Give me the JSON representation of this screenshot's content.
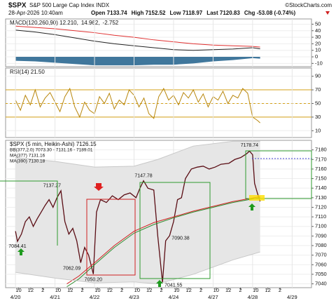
{
  "header": {
    "symbol": "$SPX",
    "name": "S&P 500 Large Cap Index INDX",
    "credit": "©StockCharts.com",
    "date": "28-Apr-2026 10:40am",
    "quote": [
      "Open 7133.74",
      "High 7152.52",
      "Low 7118.97",
      "Last 7120.83",
      "Chg -53.08 (-0.74%)"
    ]
  },
  "chart_data": [
    {
      "type": "line",
      "panel": "macd",
      "legend": [
        "MACD(120,260,90) 12.210,",
        "14.962,",
        "-2.752"
      ],
      "x": [
        0,
        0.5,
        1,
        1.5,
        2,
        2.5,
        3,
        3.5,
        4,
        4.5,
        5,
        5.5,
        6,
        6.19
      ],
      "series": [
        {
          "color": "#222222",
          "values": [
            41,
            38,
            34,
            29,
            24,
            20,
            17,
            14,
            11,
            10,
            11,
            12,
            14,
            12.21
          ]
        },
        {
          "color": "#e03030",
          "values": [
            47,
            45,
            43,
            40,
            37,
            33,
            30,
            26,
            23,
            20,
            18,
            17,
            16,
            14.962
          ]
        },
        {
          "color": "#1f5f8b",
          "histogram": true,
          "values": [
            -6,
            -7,
            -9,
            -11,
            -13,
            -13,
            -13,
            -12,
            -12,
            -10,
            -7,
            -5,
            -2,
            -2.752
          ]
        }
      ],
      "xlim": [
        -0.25,
        7.49
      ],
      "ylim": [
        -15,
        58
      ],
      "yticks": [
        50,
        40,
        30,
        20,
        10,
        0,
        -10
      ]
    },
    {
      "type": "line",
      "panel": "rsi",
      "legend": [
        "RSI(14) 21.50"
      ],
      "x": [
        0,
        0.125,
        0.25,
        0.375,
        0.5,
        0.625,
        0.75,
        0.875,
        1,
        1.125,
        1.25,
        1.375,
        1.5,
        1.625,
        1.75,
        1.875,
        2,
        2.125,
        2.25,
        2.375,
        2.5,
        2.625,
        2.75,
        2.875,
        3,
        3.125,
        3.25,
        3.375,
        3.5,
        3.625,
        3.75,
        3.875,
        4,
        4.125,
        4.25,
        4.375,
        4.5,
        4.625,
        4.75,
        4.875,
        5,
        5.125,
        5.25,
        5.375,
        5.5,
        5.625,
        5.75,
        5.875,
        6,
        6.125,
        6.19
      ],
      "series": [
        {
          "color": "#b8860b",
          "values": [
            55,
            40,
            62,
            48,
            70,
            45,
            58,
            66,
            52,
            38,
            60,
            72,
            45,
            30,
            52,
            40,
            35,
            60,
            50,
            65,
            42,
            55,
            48,
            70,
            62,
            45,
            58,
            35,
            28,
            60,
            72,
            55,
            62,
            48,
            66,
            58,
            70,
            52,
            64,
            45,
            60,
            55,
            68,
            50,
            62,
            58,
            72,
            65,
            30,
            25,
            21.5
          ]
        }
      ],
      "levels": [
        70,
        30
      ],
      "midline": 50,
      "level_color": "#d4a017",
      "xlim": [
        -0.25,
        7.49
      ],
      "ylim": [
        0,
        102
      ],
      "yticks": [
        90,
        70,
        50,
        30,
        10
      ]
    },
    {
      "type": "line",
      "panel": "price",
      "legend": [
        "$SPX (5 min, Heikin-Ashi) 7126.15",
        "BB(377,2.0) 7073.30 - 7131.16 - 7189.01",
        "MA(377) 7131.16",
        "MA(390) 7130.18"
      ],
      "legend_colors": [
        "#222222",
        "#888888",
        "#d02020",
        "#2e8b2e"
      ],
      "series": [
        {
          "color": "#5a0d14",
          "x": [
            0,
            0.05,
            0.15,
            0.25,
            0.35,
            0.45,
            0.55,
            0.65,
            0.75,
            0.85,
            0.95,
            1.05,
            1.15,
            1.25,
            1.35,
            1.45,
            1.55,
            1.65,
            1.75,
            1.85,
            1.97,
            2.05,
            2.15,
            2.3,
            2.45,
            2.6,
            2.75,
            2.9,
            3.05,
            3.15,
            3.24,
            3.35,
            3.5,
            3.6,
            3.72,
            3.8,
            3.9,
            4.0,
            4.1,
            4.2,
            4.3,
            4.45,
            4.6,
            4.75,
            4.9,
            5.05,
            5.2,
            5.4,
            5.55,
            5.7,
            5.85,
            5.92,
            6.0,
            6.05,
            6.12,
            6.19
          ],
          "values": [
            7095,
            7084.41,
            7092,
            7105,
            7110,
            7100,
            7108,
            7115,
            7122,
            7128,
            7120,
            7130,
            7137.27,
            7105,
            7092,
            7098,
            7085,
            7062.09,
            7078,
            7070,
            7050.2,
            7115,
            7128,
            7125,
            7132,
            7128,
            7133,
            7135,
            7130,
            7140,
            7147.78,
            7140,
            7138,
            7090,
            7041.55,
            7085,
            7090.38,
            7105,
            7128,
            7130,
            7150,
            7160,
            7162,
            7163,
            7160,
            7162,
            7165,
            7166,
            7170,
            7172,
            7176,
            7178.74,
            7175,
            7145,
            7135,
            7126.15
          ]
        },
        {
          "color": "#d02020",
          "x": [
            1.3,
            1.6,
            2.0,
            2.5,
            3.0,
            3.5,
            4.0,
            4.5,
            5.0,
            5.5,
            6.19
          ],
          "values": [
            7040,
            7048,
            7062,
            7080,
            7095,
            7104,
            7110,
            7116,
            7121,
            7126,
            7131.16
          ]
        },
        {
          "color": "#2e8b2e",
          "x": [
            1.3,
            1.6,
            2.0,
            2.5,
            3.0,
            3.5,
            4.0,
            4.5,
            5.0,
            5.5,
            6.19
          ],
          "values": [
            7037,
            7045,
            7060,
            7078,
            7093,
            7102,
            7109,
            7115,
            7120,
            7125,
            7130.18
          ]
        },
        {
          "color": "#c8c8c8",
          "band": true,
          "x": [
            0,
            1,
            2,
            3,
            3.6,
            4.5,
            5.5,
            6.19
          ],
          "values": [
            7172,
            7168,
            7162,
            7163,
            7170,
            7184,
            7189,
            7189.01
          ]
        },
        {
          "color": "#c8c8c8",
          "band": true,
          "x": [
            0,
            1,
            2,
            3,
            3.6,
            4.5,
            5.5,
            6.19
          ],
          "values": [
            7052,
            7046,
            7041,
            7042,
            7040,
            7050,
            7065,
            7073.3
          ]
        }
      ],
      "annotations": [
        {
          "x": 1.15,
          "value": 7137.27
        },
        {
          "x": 0.05,
          "value": 7084.41
        },
        {
          "x": 1.65,
          "value": 7062.09
        },
        {
          "x": 1.97,
          "value": 7050.2,
          "label": "7050.20"
        },
        {
          "x": 3.24,
          "value": 7147.78
        },
        {
          "x": 3.9,
          "value": 7090.38
        },
        {
          "x": 3.72,
          "value": 7041.55
        },
        {
          "x": 5.92,
          "value": 7178.74
        }
      ],
      "xlim": [
        -0.25,
        7.49
      ],
      "ylim": [
        7036,
        7190
      ],
      "yticks": [
        7180,
        7170,
        7160,
        7150,
        7140,
        7130,
        7120,
        7110,
        7100,
        7090,
        7080,
        7070,
        7060,
        7050,
        7040
      ],
      "xticks": [
        {
          "value": 0.077,
          "label": "10"
        },
        {
          "value": 0.385,
          "label": "12"
        },
        {
          "value": 0.692,
          "label": "2"
        },
        {
          "value": 1.077,
          "label": "10"
        },
        {
          "value": 1.385,
          "label": "12"
        },
        {
          "value": 1.692,
          "label": "2"
        },
        {
          "value": 2.077,
          "label": "10"
        },
        {
          "value": 2.385,
          "label": "12"
        },
        {
          "value": 2.692,
          "label": "2"
        },
        {
          "value": 3.077,
          "label": "10"
        },
        {
          "value": 3.385,
          "label": "12"
        },
        {
          "value": 3.692,
          "label": "2"
        },
        {
          "value": 4.077,
          "label": "10"
        },
        {
          "value": 4.385,
          "label": "12"
        },
        {
          "value": 4.692,
          "label": "2"
        },
        {
          "value": 5.077,
          "label": "10"
        },
        {
          "value": 5.385,
          "label": "12"
        },
        {
          "value": 5.692,
          "label": "2"
        },
        {
          "value": 6.077,
          "label": "10"
        },
        {
          "value": 6.385,
          "label": "12"
        },
        {
          "value": 6.692,
          "label": "2"
        }
      ],
      "date_ticks": [
        {
          "value": 0,
          "label": "4/20"
        },
        {
          "value": 1,
          "label": "4/21"
        },
        {
          "value": 2,
          "label": "4/22"
        },
        {
          "value": 3,
          "label": "4/23"
        },
        {
          "value": 4,
          "label": "4/24"
        },
        {
          "value": 5,
          "label": "4/27"
        },
        {
          "value": 6,
          "label": "4/28"
        },
        {
          "value": 7,
          "label": "4/29"
        }
      ]
    }
  ]
}
